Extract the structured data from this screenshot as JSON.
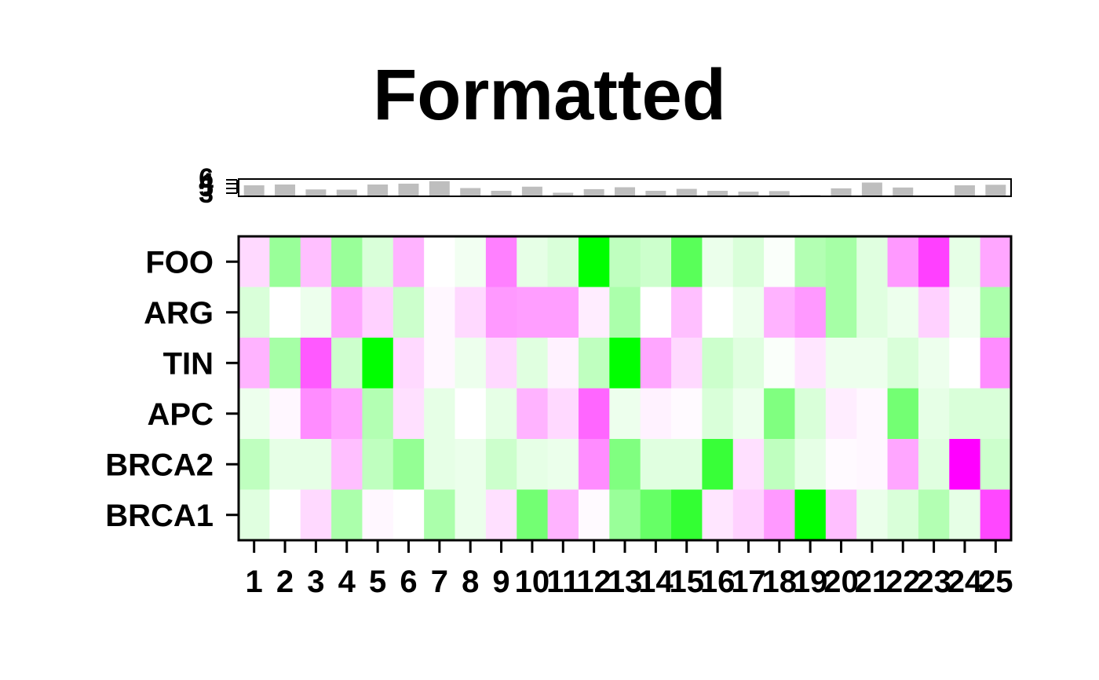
{
  "chart_data": {
    "type": "heatmap",
    "title": "Formatted",
    "rows": [
      "FOO",
      "ARG",
      "TIN",
      "APC",
      "BRCA2",
      "BRCA1"
    ],
    "columns": [
      "1",
      "2",
      "3",
      "4",
      "5",
      "6",
      "7",
      "8",
      "9",
      "10",
      "11",
      "12",
      "13",
      "14",
      "15",
      "16",
      "17",
      "18",
      "19",
      "20",
      "21",
      "22",
      "23",
      "24",
      "25"
    ],
    "values": [
      [
        -0.15,
        0.4,
        -0.25,
        0.4,
        0.15,
        -0.3,
        0,
        0.05,
        -0.5,
        0.1,
        0.15,
        1.0,
        0.25,
        0.2,
        0.65,
        0.08,
        0.15,
        0.02,
        0.3,
        0.35,
        0.12,
        -0.4,
        -0.75,
        0.1,
        -0.35
      ],
      [
        0.15,
        0,
        0.07,
        -0.35,
        -0.18,
        0.2,
        -0.03,
        -0.15,
        -0.4,
        -0.38,
        -0.38,
        -0.07,
        0.33,
        0,
        -0.25,
        0,
        0.07,
        -0.3,
        -0.4,
        0.35,
        0.12,
        0.07,
        -0.18,
        0.05,
        0.33
      ],
      [
        -0.3,
        0.35,
        -0.65,
        0.2,
        1.0,
        -0.15,
        -0.03,
        0.07,
        -0.15,
        0.12,
        -0.05,
        0.25,
        1.0,
        -0.35,
        -0.15,
        0.2,
        0.12,
        0.02,
        -0.1,
        0.07,
        0.07,
        0.15,
        0.07,
        0,
        -0.45
      ],
      [
        0.07,
        -0.03,
        -0.45,
        -0.35,
        0.3,
        -0.12,
        0.1,
        0,
        0.1,
        -0.3,
        -0.15,
        -0.6,
        0.07,
        -0.05,
        -0.02,
        0.15,
        0.07,
        0.5,
        0.15,
        -0.07,
        -0.03,
        0.55,
        0.1,
        0.15,
        0.15
      ],
      [
        0.25,
        0.1,
        0.1,
        -0.25,
        0.25,
        0.42,
        0.1,
        0.08,
        0.2,
        0.1,
        0.08,
        -0.45,
        0.5,
        0.12,
        0.12,
        0.78,
        -0.12,
        0.25,
        0.1,
        -0.02,
        -0.03,
        -0.35,
        0.12,
        -1.0,
        0.2
      ],
      [
        0.12,
        0,
        -0.15,
        0.33,
        -0.03,
        0,
        0.33,
        0.08,
        -0.12,
        0.55,
        -0.3,
        -0.02,
        0.4,
        0.6,
        0.8,
        -0.1,
        -0.18,
        -0.4,
        1.0,
        -0.25,
        0.08,
        0.15,
        0.3,
        0.1,
        -0.72
      ]
    ],
    "color_scale": {
      "low": "#ff00ff",
      "mid": "#ffffff",
      "high": "#00ff00"
    },
    "top_bars": {
      "tick_labels": [
        "6",
        "4",
        "5",
        "3"
      ],
      "values": [
        4.0,
        4.3,
        2.5,
        2.4,
        4.3,
        4.6,
        5.5,
        3.0,
        2.0,
        3.5,
        1.3,
        2.6,
        3.3,
        2.0,
        2.7,
        2.0,
        1.7,
        1.9,
        0.5,
        2.9,
        5.0,
        3.2,
        0.0,
        4.0,
        4.2
      ],
      "ylim": [
        0,
        6
      ],
      "bar_color": "#bebebe"
    }
  }
}
